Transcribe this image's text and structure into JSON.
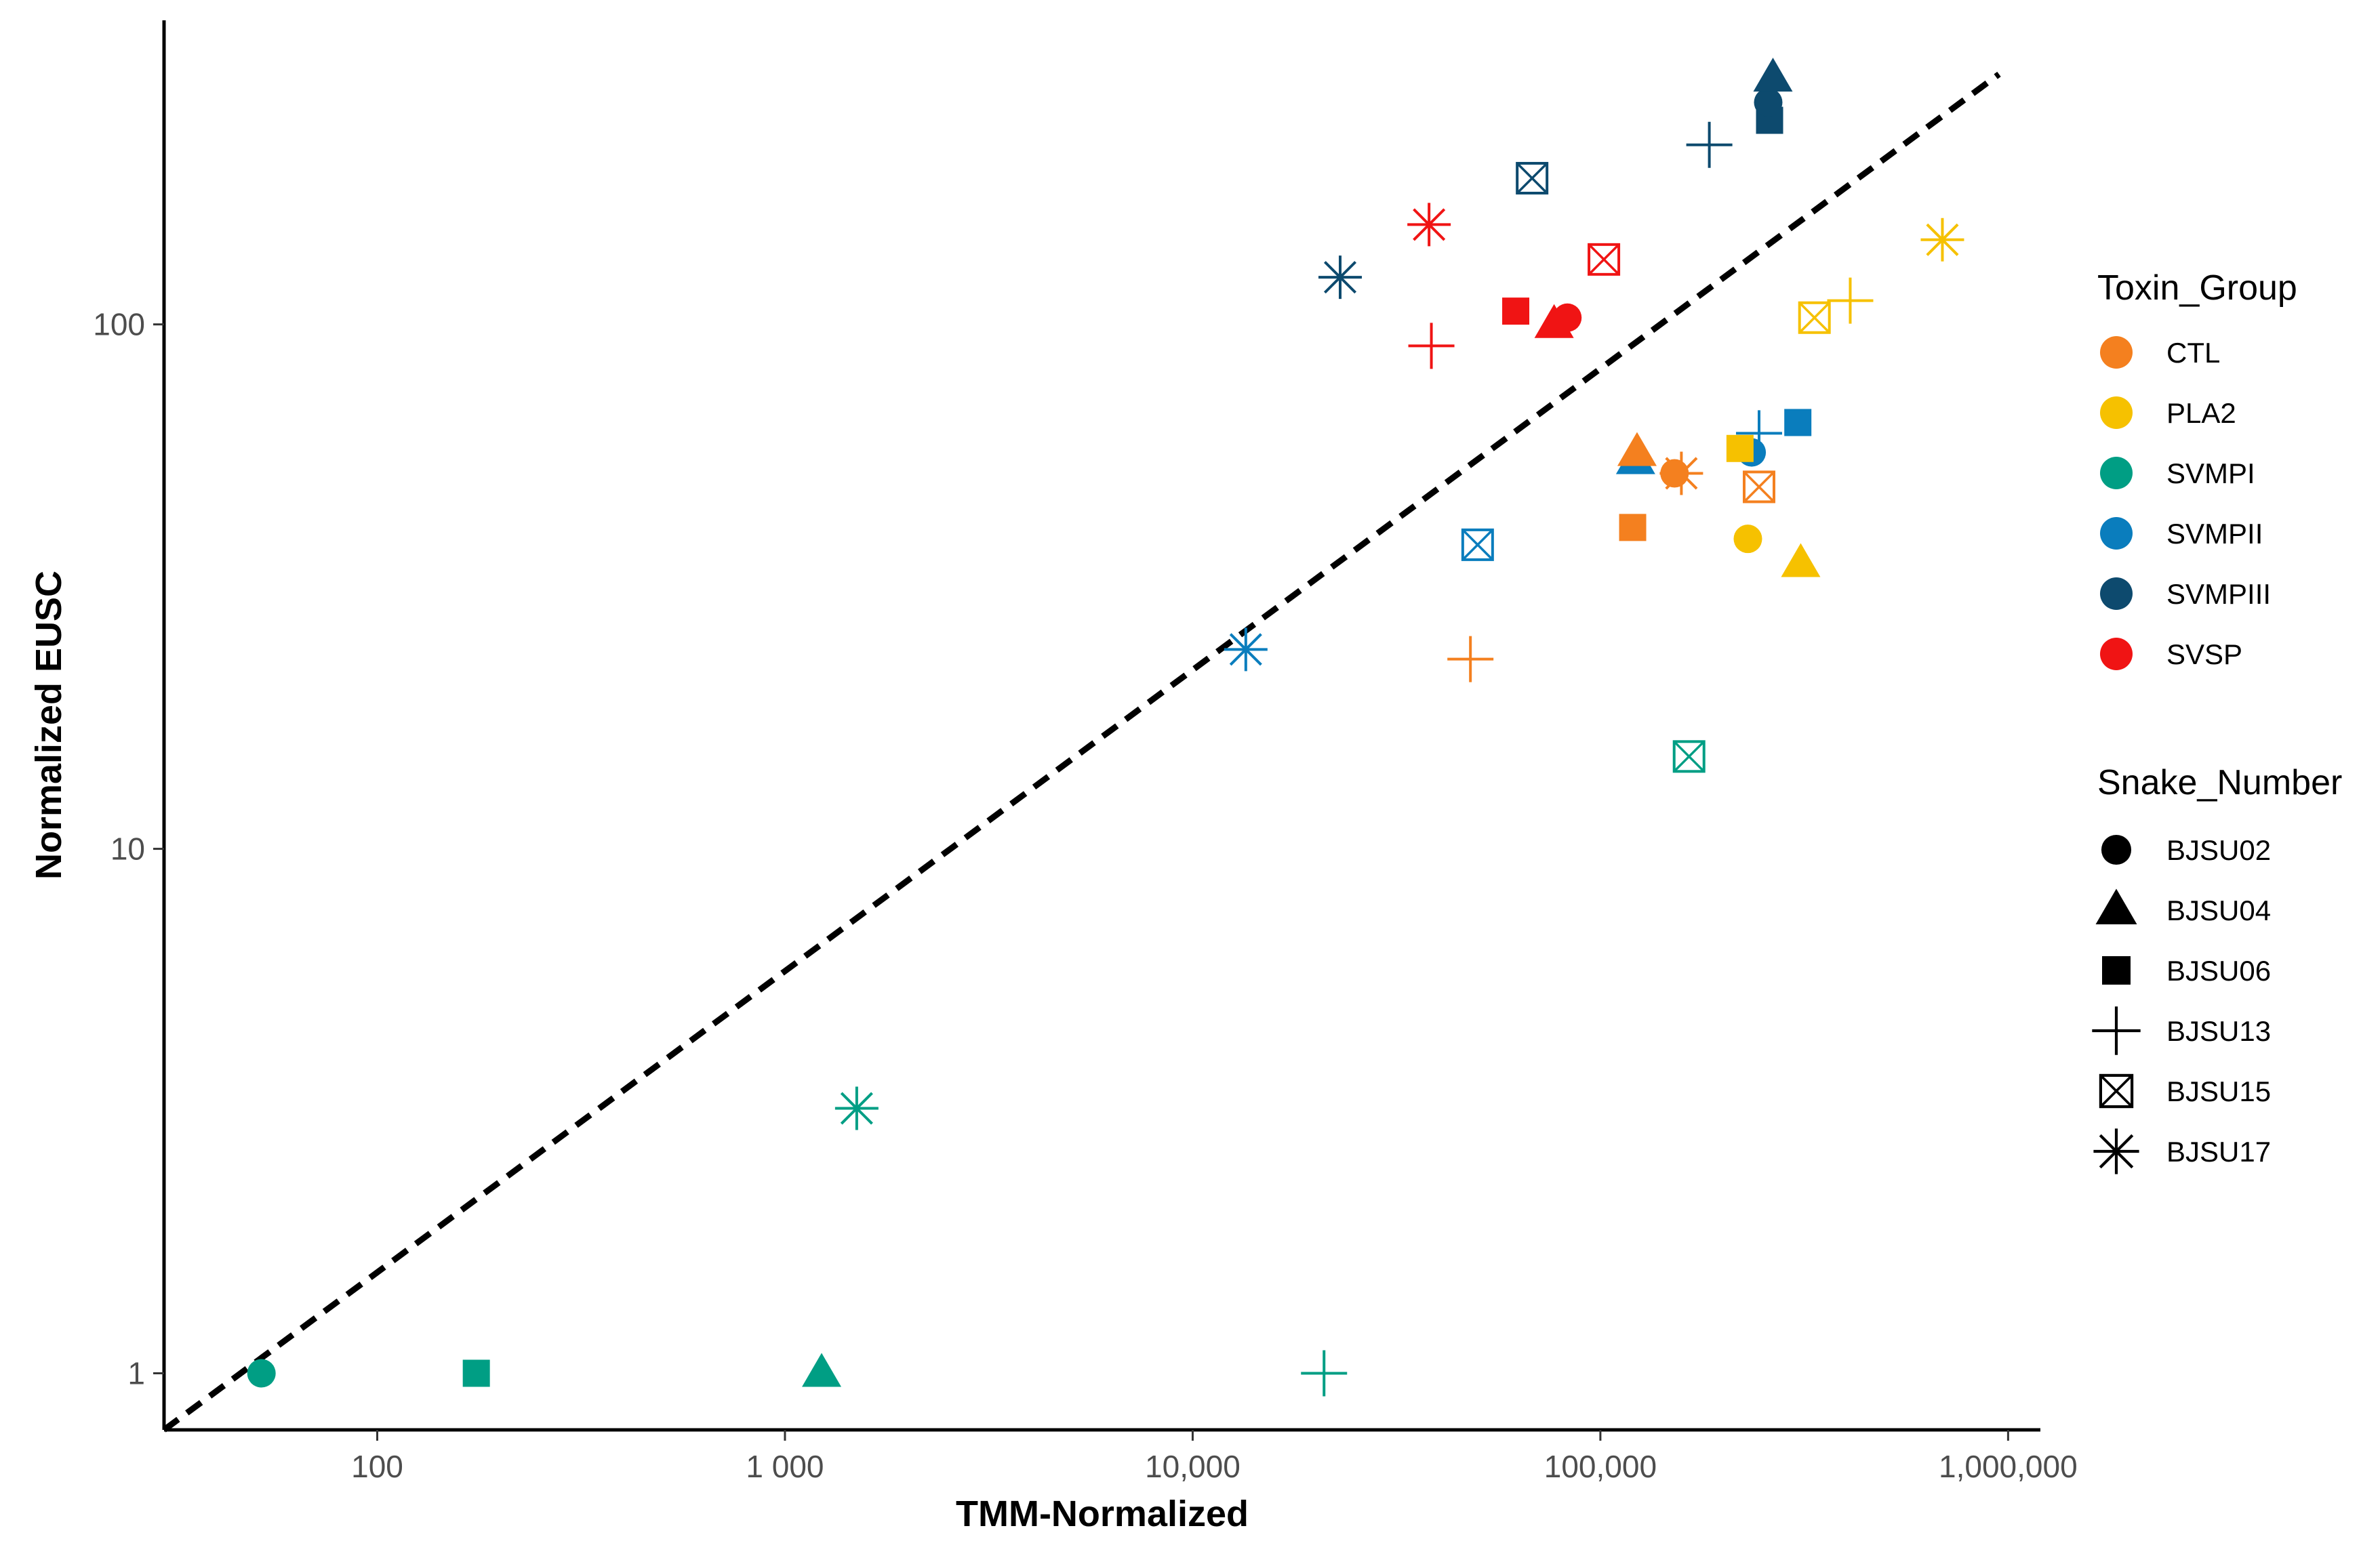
{
  "chart_data": {
    "type": "scatter",
    "title": "",
    "xlabel": "TMM-Normalized",
    "ylabel": "Normalized EUSC",
    "xscale": "log10",
    "yscale": "log10",
    "xlim": [
      30,
      1200000
    ],
    "ylim": [
      0.78,
      380
    ],
    "x_ticks": [
      {
        "value": 100,
        "label": "100"
      },
      {
        "value": 1000,
        "label": "1 000"
      },
      {
        "value": 10000,
        "label": "10,000"
      },
      {
        "value": 100000,
        "label": "100,000"
      },
      {
        "value": 1000000,
        "label": "1,000,000"
      }
    ],
    "y_ticks": [
      {
        "value": 1,
        "label": "1"
      },
      {
        "value": 10,
        "label": "10"
      },
      {
        "value": 100,
        "label": "100"
      }
    ],
    "grid": false,
    "reference_line": {
      "type": "identity-dashed",
      "from_x": 30,
      "to_x": 950000,
      "slope_note": "y proportional to x^0.5 in log space",
      "color": "#000000"
    },
    "legends": [
      {
        "title": "Toxin_Group",
        "entries": [
          {
            "label": "CTL",
            "color": "#F4801F"
          },
          {
            "label": "PLA2",
            "color": "#F6C100"
          },
          {
            "label": "SVMPI",
            "color": "#009E84"
          },
          {
            "label": "SVMPII",
            "color": "#0A7DBD"
          },
          {
            "label": "SVMPIII",
            "color": "#0D4A6E"
          },
          {
            "label": "SVSP",
            "color": "#F01414"
          }
        ]
      },
      {
        "title": "Snake_Number",
        "entries": [
          {
            "label": "BJSU02",
            "shape": "circle"
          },
          {
            "label": "BJSU04",
            "shape": "triangle"
          },
          {
            "label": "BJSU06",
            "shape": "square"
          },
          {
            "label": "BJSU13",
            "shape": "plus"
          },
          {
            "label": "BJSU15",
            "shape": "boxx"
          },
          {
            "label": "BJSU17",
            "shape": "asterisk"
          }
        ]
      }
    ],
    "points": [
      {
        "group": "SVMPI",
        "snake": "BJSU02",
        "x": 52,
        "y": 1.0
      },
      {
        "group": "SVMPI",
        "snake": "BJSU06",
        "x": 175,
        "y": 1.0
      },
      {
        "group": "SVMPI",
        "snake": "BJSU04",
        "x": 1230,
        "y": 1.0
      },
      {
        "group": "SVMPI",
        "snake": "BJSU17",
        "x": 1500,
        "y": 3.2
      },
      {
        "group": "SVMPI",
        "snake": "BJSU13",
        "x": 21000,
        "y": 1.0
      },
      {
        "group": "SVMPI",
        "snake": "BJSU15",
        "x": 165000,
        "y": 15
      },
      {
        "group": "SVMPII",
        "snake": "BJSU17",
        "x": 13500,
        "y": 24
      },
      {
        "group": "SVMPII",
        "snake": "BJSU15",
        "x": 50000,
        "y": 38
      },
      {
        "group": "SVMPII",
        "snake": "BJSU04",
        "x": 122000,
        "y": 55
      },
      {
        "group": "SVMPII",
        "snake": "BJSU02",
        "x": 235000,
        "y": 57
      },
      {
        "group": "SVMPII",
        "snake": "BJSU06",
        "x": 305000,
        "y": 65
      },
      {
        "group": "SVMPII",
        "snake": "BJSU13",
        "x": 245000,
        "y": 62
      },
      {
        "group": "SVMPIII",
        "snake": "BJSU17",
        "x": 23000,
        "y": 123
      },
      {
        "group": "SVMPIII",
        "snake": "BJSU15",
        "x": 68000,
        "y": 190
      },
      {
        "group": "SVMPIII",
        "snake": "BJSU13",
        "x": 185000,
        "y": 220
      },
      {
        "group": "SVMPIII",
        "snake": "BJSU06",
        "x": 260000,
        "y": 245
      },
      {
        "group": "SVMPIII",
        "snake": "BJSU02",
        "x": 258000,
        "y": 265
      },
      {
        "group": "SVMPIII",
        "snake": "BJSU04",
        "x": 265000,
        "y": 295
      },
      {
        "group": "SVSP",
        "snake": "BJSU17",
        "x": 38000,
        "y": 155
      },
      {
        "group": "SVSP",
        "snake": "BJSU13",
        "x": 38500,
        "y": 91
      },
      {
        "group": "SVSP",
        "snake": "BJSU06",
        "x": 62000,
        "y": 106
      },
      {
        "group": "SVSP",
        "snake": "BJSU04",
        "x": 77000,
        "y": 100
      },
      {
        "group": "SVSP",
        "snake": "BJSU02",
        "x": 83000,
        "y": 103
      },
      {
        "group": "SVSP",
        "snake": "BJSU15",
        "x": 102000,
        "y": 133
      },
      {
        "group": "CTL",
        "snake": "BJSU13",
        "x": 48000,
        "y": 23
      },
      {
        "group": "CTL",
        "snake": "BJSU06",
        "x": 120000,
        "y": 41
      },
      {
        "group": "CTL",
        "snake": "BJSU04",
        "x": 123000,
        "y": 57
      },
      {
        "group": "CTL",
        "snake": "BJSU17",
        "x": 158000,
        "y": 52
      },
      {
        "group": "CTL",
        "snake": "BJSU02",
        "x": 152000,
        "y": 52
      },
      {
        "group": "CTL",
        "snake": "BJSU15",
        "x": 245000,
        "y": 49
      },
      {
        "group": "PLA2",
        "snake": "BJSU02",
        "x": 230000,
        "y": 39
      },
      {
        "group": "PLA2",
        "snake": "BJSU06",
        "x": 220000,
        "y": 58
      },
      {
        "group": "PLA2",
        "snake": "BJSU04",
        "x": 310000,
        "y": 35
      },
      {
        "group": "PLA2",
        "snake": "BJSU15",
        "x": 335000,
        "y": 103
      },
      {
        "group": "PLA2",
        "snake": "BJSU13",
        "x": 410000,
        "y": 111
      },
      {
        "group": "PLA2",
        "snake": "BJSU17",
        "x": 690000,
        "y": 145
      }
    ]
  }
}
